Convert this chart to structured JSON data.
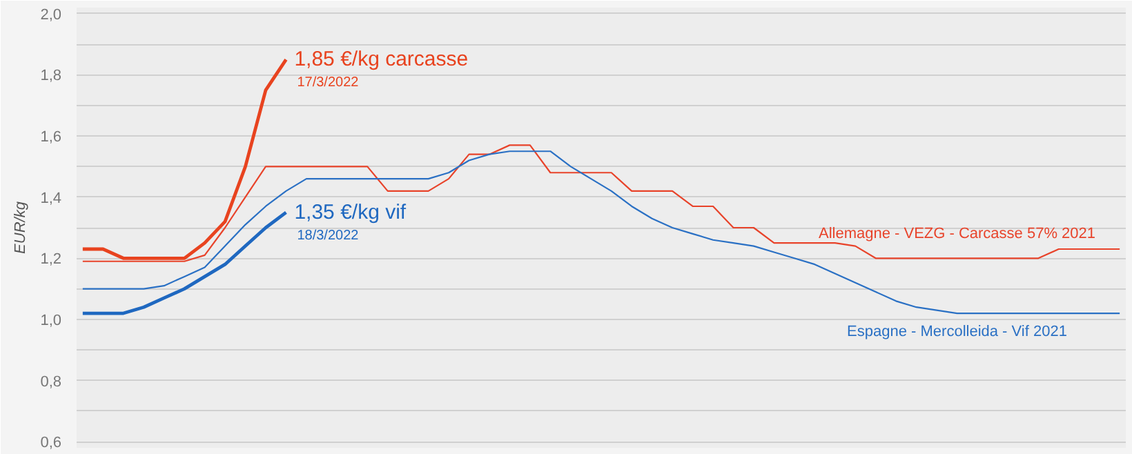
{
  "chart_data": {
    "type": "line",
    "ylabel": "EUR/kg",
    "categories": [
      null,
      null,
      null,
      null,
      null,
      null,
      null,
      null,
      null,
      null,
      null,
      null,
      null,
      null,
      null,
      null,
      null,
      null,
      null,
      null,
      null,
      null,
      null,
      null,
      null,
      null,
      null,
      null,
      null,
      null,
      null,
      null,
      null,
      null,
      null,
      null,
      null,
      null,
      null,
      null,
      null,
      null,
      null,
      null,
      null,
      null,
      null,
      null,
      null,
      null,
      null,
      null
    ],
    "series": [
      {
        "name": "Allemagne - VEZG - Carcasse 57% 2021",
        "color": "#e8432a",
        "values": [
          1.19,
          1.19,
          1.19,
          1.19,
          1.19,
          1.19,
          1.21,
          1.3,
          1.4,
          1.5,
          1.5,
          1.5,
          1.5,
          1.5,
          1.5,
          1.42,
          1.42,
          1.42,
          1.46,
          1.54,
          1.54,
          1.57,
          1.57,
          1.48,
          1.48,
          1.48,
          1.48,
          1.42,
          1.42,
          1.42,
          1.37,
          1.37,
          1.3,
          1.3,
          1.25,
          1.25,
          1.25,
          1.25,
          1.24,
          1.2,
          1.2,
          1.2,
          1.2,
          1.2,
          1.2,
          1.2,
          1.2,
          1.2,
          1.23,
          1.23,
          1.23,
          1.23
        ]
      },
      {
        "name": "Espagne - Mercolleida - Vif 2021",
        "color": "#2a70c4",
        "values": [
          1.1,
          1.1,
          1.1,
          1.1,
          1.11,
          1.14,
          1.17,
          1.24,
          1.31,
          1.37,
          1.42,
          1.46,
          1.46,
          1.46,
          1.46,
          1.46,
          1.46,
          1.46,
          1.48,
          1.52,
          1.54,
          1.55,
          1.55,
          1.55,
          1.5,
          1.46,
          1.42,
          1.37,
          1.33,
          1.3,
          1.28,
          1.26,
          1.25,
          1.24,
          1.22,
          1.2,
          1.18,
          1.15,
          1.12,
          1.09,
          1.06,
          1.04,
          1.03,
          1.02,
          1.02,
          1.02,
          1.02,
          1.02,
          1.02,
          1.02,
          1.02,
          1.02
        ]
      },
      {
        "color": "#e8431f",
        "values": [
          1.23,
          1.23,
          1.2,
          1.2,
          1.2,
          1.2,
          1.25,
          1.32,
          1.5,
          1.75,
          1.85,
          null,
          null,
          null,
          null,
          null,
          null,
          null,
          null,
          null,
          null,
          null,
          null,
          null,
          null,
          null,
          null,
          null,
          null,
          null,
          null,
          null,
          null,
          null,
          null,
          null,
          null,
          null,
          null,
          null,
          null,
          null,
          null,
          null,
          null,
          null,
          null,
          null,
          null,
          null,
          null,
          null
        ]
      },
      {
        "color": "#1f68c0",
        "values": [
          1.02,
          1.02,
          1.02,
          1.04,
          1.07,
          1.1,
          1.14,
          1.18,
          1.24,
          1.3,
          1.35,
          null,
          null,
          null,
          null,
          null,
          null,
          null,
          null,
          null,
          null,
          null,
          null,
          null,
          null,
          null,
          null,
          null,
          null,
          null,
          null,
          null,
          null,
          null,
          null,
          null,
          null,
          null,
          null,
          null,
          null,
          null,
          null,
          null,
          null,
          null,
          null,
          null,
          null,
          null,
          null,
          null
        ]
      }
    ],
    "annotations": [
      "1,85 €/kg carcasse",
      "17/3/2022",
      "1,35 €/kg vif",
      "18/3/2022"
    ],
    "ylim": [
      0.58,
      2.02
    ],
    "yticks": [
      {
        "value": 0.6,
        "label": "0,6"
      },
      {
        "value": 0.7,
        "label": null
      },
      {
        "value": 0.8,
        "label": "0,8"
      },
      {
        "value": 0.9,
        "label": null
      },
      {
        "value": 1.0,
        "label": "1,0"
      },
      {
        "value": 1.1,
        "label": null
      },
      {
        "value": 1.2,
        "label": "1,2"
      },
      {
        "value": 1.3,
        "label": null
      },
      {
        "value": 1.4,
        "label": "1,4"
      },
      {
        "value": 1.5,
        "label": null
      },
      {
        "value": 1.6,
        "label": "1,6"
      },
      {
        "value": 1.7,
        "label": null
      },
      {
        "value": 1.8,
        "label": "1,8"
      },
      {
        "value": 1.9,
        "label": null
      },
      {
        "value": 2.0,
        "label": "2,0"
      }
    ],
    "grid": "y",
    "tick_labels": "y",
    "marker": "none",
    "line_style": "solid"
  }
}
